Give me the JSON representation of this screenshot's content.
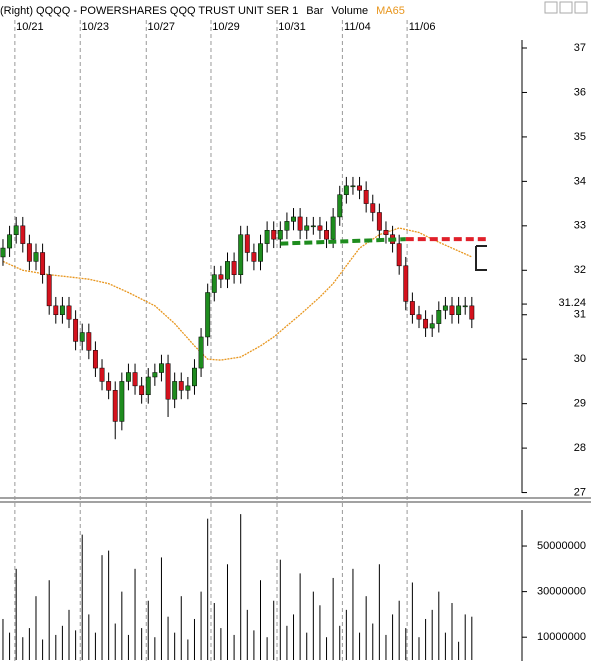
{
  "chart_data": {
    "type": "candlestick",
    "title": "(Right)  QQQQ - POWERSHARES QQQ TRUST UNIT SER 1",
    "chart_style": "Bar",
    "volume_label": "Volume",
    "xlim": [
      -0.45,
      78.6
    ],
    "xticks": [
      {
        "value": 1.8,
        "label": "10/21"
      },
      {
        "value": 11.7,
        "label": "10/23"
      },
      {
        "value": 21.7,
        "label": "10/27"
      },
      {
        "value": 31.5,
        "label": "10/29"
      },
      {
        "value": 41.5,
        "label": "10/31"
      },
      {
        "value": 51.4,
        "label": "11/04"
      },
      {
        "value": 61.2,
        "label": "11/06"
      }
    ],
    "ylim": [
      26.9,
      37.9
    ],
    "yticks": [
      27,
      28,
      29,
      30,
      31,
      32,
      33,
      34,
      35,
      36,
      37
    ],
    "last_price": 31.24,
    "up_color": "#1e8c1e",
    "down_color": "#d4121e",
    "open": [
      32.3,
      32.5,
      32.8,
      33.0,
      32.6,
      32.2,
      32.4,
      31.9,
      31.2,
      31.0,
      31.2,
      30.9,
      30.4,
      30.6,
      30.2,
      29.8,
      29.5,
      29.3,
      28.6,
      29.5,
      29.7,
      29.4,
      29.2,
      29.6,
      29.7,
      29.9,
      29.1,
      29.5,
      29.3,
      29.4,
      29.8,
      30.5,
      31.5,
      31.9,
      31.8,
      32.2,
      31.9,
      32.8,
      32.4,
      32.2,
      32.6,
      32.9,
      32.7,
      32.9,
      33.1,
      33.2,
      32.9,
      33.0,
      33.0,
      32.9,
      32.7,
      33.2,
      33.7,
      33.9,
      33.9,
      33.8,
      33.5,
      33.3,
      32.9,
      32.8,
      32.6,
      32.1,
      31.3,
      31.0,
      30.9,
      30.7,
      30.8,
      31.1,
      31.2,
      31.0,
      31.2,
      31.2
    ],
    "high": [
      32.7,
      33.0,
      33.2,
      33.2,
      32.8,
      32.6,
      32.6,
      32.1,
      31.4,
      31.4,
      31.4,
      31.1,
      30.8,
      30.8,
      30.4,
      30.0,
      29.7,
      29.5,
      29.7,
      29.9,
      29.9,
      29.6,
      29.8,
      29.9,
      30.1,
      30.1,
      29.7,
      29.7,
      29.6,
      30.0,
      30.7,
      31.7,
      32.1,
      32.1,
      32.4,
      32.4,
      33.0,
      33.0,
      32.6,
      32.8,
      33.1,
      33.1,
      33.1,
      33.3,
      33.4,
      33.4,
      33.2,
      33.2,
      33.2,
      33.1,
      33.4,
      33.9,
      34.1,
      34.1,
      34.1,
      34.0,
      33.7,
      33.5,
      33.1,
      33.0,
      32.8,
      32.3,
      31.5,
      31.2,
      31.1,
      31.0,
      31.3,
      31.4,
      31.4,
      31.4,
      31.4,
      31.4
    ],
    "low": [
      32.1,
      32.3,
      32.6,
      32.4,
      32.0,
      32.0,
      31.7,
      31.0,
      30.8,
      30.8,
      30.7,
      30.2,
      30.2,
      30.0,
      29.6,
      29.3,
      29.1,
      28.2,
      28.4,
      29.3,
      29.2,
      29.0,
      29.0,
      29.4,
      29.5,
      28.7,
      28.9,
      29.1,
      29.1,
      29.2,
      29.6,
      30.3,
      31.3,
      31.6,
      31.6,
      31.7,
      31.7,
      32.2,
      32.0,
      32.0,
      32.4,
      32.5,
      32.5,
      32.7,
      32.9,
      32.7,
      32.7,
      32.8,
      32.7,
      32.5,
      32.5,
      33.0,
      33.5,
      33.7,
      33.6,
      33.3,
      33.1,
      32.7,
      32.6,
      32.4,
      31.9,
      31.1,
      30.8,
      30.7,
      30.5,
      30.5,
      30.6,
      30.9,
      30.8,
      30.8,
      31.0,
      30.7
    ],
    "close": [
      32.5,
      32.8,
      33.0,
      32.6,
      32.2,
      32.4,
      31.9,
      31.2,
      31.0,
      31.2,
      30.9,
      30.4,
      30.6,
      30.2,
      29.8,
      29.5,
      29.3,
      28.6,
      29.5,
      29.7,
      29.4,
      29.2,
      29.6,
      29.7,
      29.9,
      29.1,
      29.5,
      29.3,
      29.4,
      29.8,
      30.5,
      31.5,
      31.9,
      31.8,
      32.2,
      31.9,
      32.8,
      32.4,
      32.2,
      32.6,
      32.9,
      32.7,
      32.9,
      33.1,
      33.2,
      32.9,
      33.0,
      33.0,
      32.9,
      32.7,
      33.2,
      33.7,
      33.9,
      33.9,
      33.8,
      33.5,
      33.3,
      32.9,
      32.8,
      32.6,
      32.1,
      31.3,
      31.0,
      30.9,
      30.7,
      30.8,
      31.1,
      31.2,
      31.0,
      31.2,
      31.2,
      30.9
    ],
    "ma": {
      "name": "MA65",
      "color": "#e8961e",
      "x": [
        0,
        3,
        7,
        10,
        13,
        16,
        19,
        23,
        26,
        29,
        31,
        33,
        36,
        39,
        41,
        43,
        45,
        48,
        50,
        52,
        54,
        57,
        60,
        63,
        65,
        68,
        71
      ],
      "values": [
        32.2,
        32.0,
        31.9,
        31.85,
        31.8,
        31.7,
        31.5,
        31.2,
        30.8,
        30.3,
        30.0,
        29.98,
        30.05,
        30.3,
        30.5,
        30.75,
        31.0,
        31.4,
        31.7,
        32.1,
        32.5,
        32.8,
        32.95,
        32.85,
        32.7,
        32.5,
        32.3
      ]
    },
    "trendlines": [
      {
        "color": "#1e8c1e",
        "x": [
          42,
          61
        ],
        "y": [
          32.6,
          32.7
        ]
      },
      {
        "color": "#e0202a",
        "x": [
          61,
          73.5
        ],
        "y": [
          32.7,
          32.7
        ]
      }
    ],
    "volume": [
      18000000,
      12000000,
      40000000,
      10000000,
      14000000,
      28000000,
      9000000,
      35000000,
      11000000,
      15000000,
      22000000,
      13000000,
      55000000,
      20000000,
      12000000,
      46000000,
      48000000,
      16000000,
      30000000,
      11000000,
      40000000,
      14000000,
      26000000,
      10000000,
      45000000,
      19000000,
      12000000,
      28000000,
      9000000,
      18000000,
      30000000,
      62000000,
      25000000,
      14000000,
      42000000,
      11000000,
      64000000,
      22000000,
      13000000,
      35000000,
      10000000,
      26000000,
      44000000,
      15000000,
      20000000,
      38000000,
      12000000,
      30000000,
      24000000,
      10000000,
      36000000,
      15000000,
      22000000,
      40000000,
      12000000,
      28000000,
      16000000,
      42000000,
      11000000,
      20000000,
      26000000,
      14000000,
      34000000,
      10000000,
      18000000,
      22000000,
      30000000,
      12000000,
      25000000,
      8000000,
      20000000,
      19000000
    ],
    "volume_ylim": [
      0,
      68000000
    ],
    "volume_yticks": [
      10000000,
      30000000,
      50000000
    ]
  }
}
